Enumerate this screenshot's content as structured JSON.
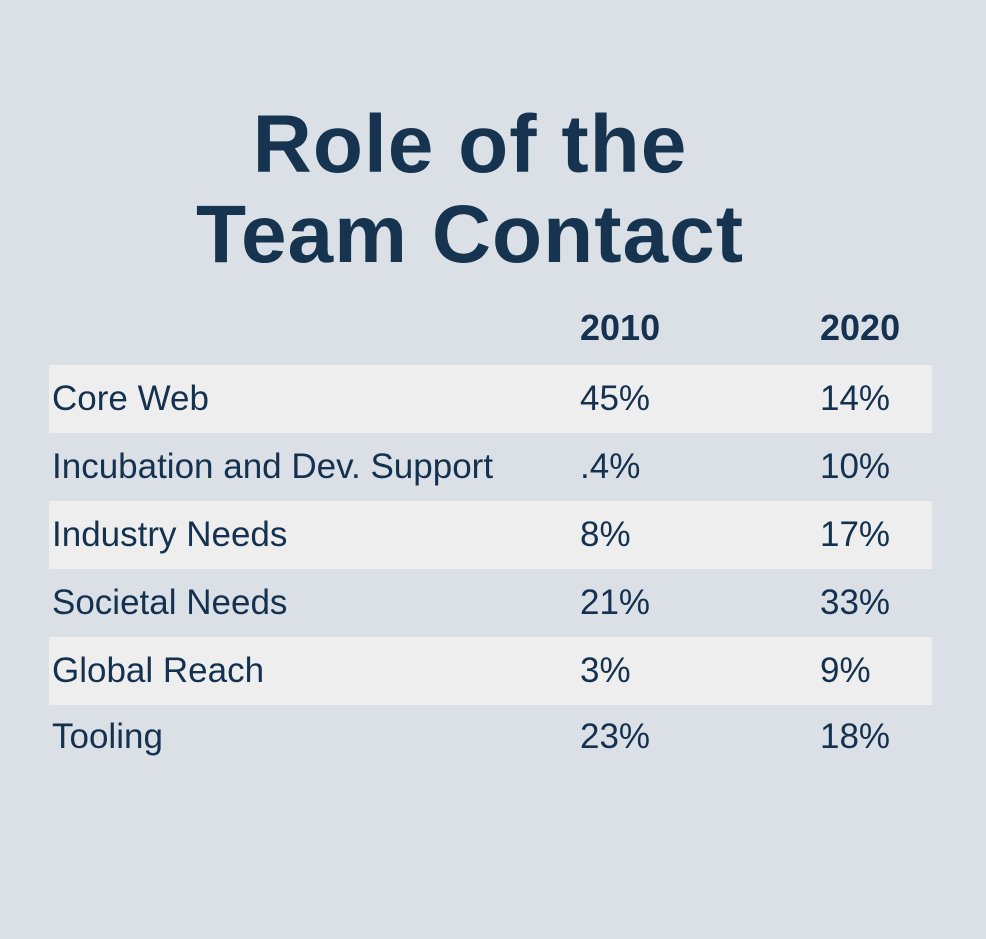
{
  "title": {
    "line1": "Role of the",
    "line2": "Team Contact"
  },
  "columns": [
    "2010",
    "2020"
  ],
  "rows": [
    {
      "label": "Core Web",
      "y2010": "45%",
      "y2020": "14%"
    },
    {
      "label": "Incubation and Dev. Support",
      "y2010": ".4%",
      "y2020": "10%"
    },
    {
      "label": "Industry Needs",
      "y2010": "8%",
      "y2020": "17%"
    },
    {
      "label": "Societal Needs",
      "y2010": "21%",
      "y2020": "33%"
    },
    {
      "label": "Global Reach",
      "y2010": "3%",
      "y2020": "9%"
    },
    {
      "label": "Tooling",
      "y2010": "23%",
      "y2020": "18%"
    }
  ],
  "colors": {
    "background": "#dbe0e7",
    "row_alt": "#eeeeee",
    "text": "#14314f"
  }
}
